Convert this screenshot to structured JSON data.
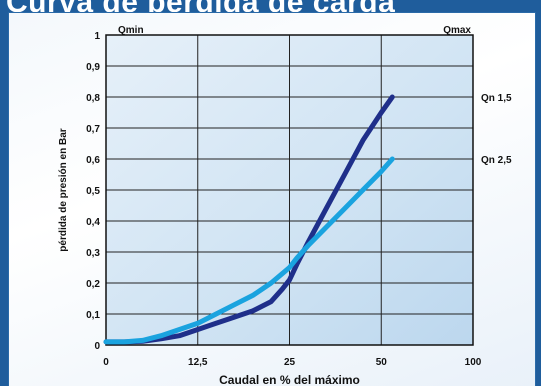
{
  "header": {
    "title": "Curva de pérdida de carga"
  },
  "chart_data": {
    "type": "line",
    "title": "Curva de pérdida de carga",
    "xlabel": "Caudal en % del máximo",
    "ylabel": "pérdida de presión en  Bar",
    "xlim": [
      0,
      100
    ],
    "ylim": [
      0,
      1
    ],
    "x_ticks": [
      0,
      12.5,
      25,
      50,
      100
    ],
    "x_tick_labels": [
      "0",
      "12,5",
      "25",
      "50",
      "100"
    ],
    "y_ticks": [
      0,
      0.1,
      0.2,
      0.3,
      0.4,
      0.5,
      0.6,
      0.7,
      0.8,
      0.9,
      1
    ],
    "y_tick_labels": [
      "0",
      "0,1",
      "0,2",
      "0,3",
      "0,4",
      "0,5",
      "0,6",
      "0,7",
      "0,8",
      "0,9",
      "1"
    ],
    "grid": true,
    "top_labels": {
      "left": "Qmin",
      "right": "Qmax"
    },
    "series": [
      {
        "name": "Qn 1,5",
        "color": "#1f2f8a",
        "points": [
          [
            0,
            0.01
          ],
          [
            5,
            0.01
          ],
          [
            10,
            0.012
          ],
          [
            15,
            0.02
          ],
          [
            20,
            0.03
          ],
          [
            25,
            0.05
          ],
          [
            30,
            0.07
          ],
          [
            35,
            0.09
          ],
          [
            40,
            0.11
          ],
          [
            45,
            0.14
          ],
          [
            48,
            0.18
          ],
          [
            50,
            0.21
          ],
          [
            52,
            0.26
          ],
          [
            55,
            0.33
          ],
          [
            60,
            0.44
          ],
          [
            65,
            0.55
          ],
          [
            70,
            0.66
          ],
          [
            75,
            0.75
          ],
          [
            78,
            0.8
          ]
        ]
      },
      {
        "name": "Qn 2,5",
        "color": "#1aa3df",
        "points": [
          [
            0,
            0.01
          ],
          [
            5,
            0.01
          ],
          [
            10,
            0.015
          ],
          [
            15,
            0.03
          ],
          [
            20,
            0.05
          ],
          [
            25,
            0.07
          ],
          [
            30,
            0.1
          ],
          [
            35,
            0.13
          ],
          [
            40,
            0.16
          ],
          [
            45,
            0.2
          ],
          [
            48,
            0.23
          ],
          [
            50,
            0.25
          ],
          [
            52,
            0.28
          ],
          [
            55,
            0.32
          ],
          [
            60,
            0.38
          ],
          [
            65,
            0.44
          ],
          [
            70,
            0.5
          ],
          [
            75,
            0.56
          ],
          [
            78,
            0.6
          ]
        ]
      }
    ]
  },
  "colors": {
    "plot_band": "#cfe3f3",
    "plot_band_light": "#e3eef8",
    "grid": "#222222",
    "background": "#1f5d9c"
  }
}
